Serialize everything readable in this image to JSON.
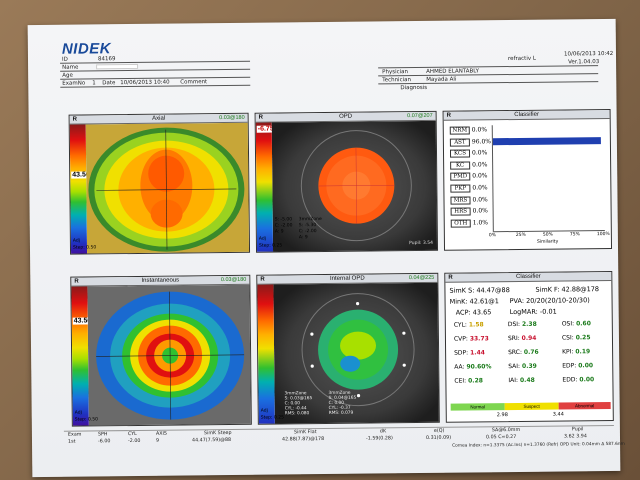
{
  "header": {
    "logo": "NIDEK",
    "id_label": "ID",
    "id_value": "84169",
    "name_label": "Name",
    "age_label": "Age",
    "exam_label": "ExamNo",
    "exam_value": "1",
    "date_label": "Date",
    "date_value": "10/06/2013 10:40",
    "comment_label": "Comment",
    "physician_label": "Physician",
    "physician_value": "AHMED ELANTABLY",
    "technician_label": "Technician",
    "technician_value": "Mayada Ali",
    "diagnosis_label": "Diagnosis",
    "device": "refractiv L",
    "print_date": "10/06/2013 10:42",
    "version": "Ver.1.04.03"
  },
  "panels": {
    "axial": {
      "eye": "R",
      "title": "Axial",
      "angle": "0.03@180",
      "big": "43.50",
      "mode": "Adj",
      "step": "Step: 0.50"
    },
    "opd": {
      "eye": "R",
      "title": "OPD",
      "angle": "0.07@207",
      "big": "-6.75",
      "s": "S: -5.00",
      "c": "C: -2.00",
      "a": "A: 9",
      "zone": "3mmZone",
      "s2": "S: -5.30",
      "c2": "C: -2.00",
      "a2": "A: 9",
      "mode": "Adj",
      "step": "Step: 0.25",
      "pupil": "Pupil: 3.54"
    },
    "classifier1": {
      "eye": "R",
      "title": "Classifier",
      "axis_label": "Similarity",
      "rows": [
        {
          "code": "NRM",
          "pct": "0.0%"
        },
        {
          "code": "AST",
          "pct": "96.0%"
        },
        {
          "code": "KCS",
          "pct": "0.0%"
        },
        {
          "code": "KC",
          "pct": "0.0%"
        },
        {
          "code": "PMD",
          "pct": "0.0%"
        },
        {
          "code": "PKP",
          "pct": "0.0%"
        },
        {
          "code": "MRS",
          "pct": "0.0%"
        },
        {
          "code": "HRS",
          "pct": "0.0%"
        },
        {
          "code": "OTH",
          "pct": "1.0%"
        }
      ],
      "ticks": [
        "0%",
        "25%",
        "50%",
        "75%",
        "100%"
      ]
    },
    "instant": {
      "eye": "R",
      "title": "Instantaneous",
      "angle": "0.03@180",
      "big": "43.50",
      "mode": "Adj",
      "step": "Step: 0.50"
    },
    "iopd": {
      "eye": "R",
      "title": "Internal OPD",
      "angle": "0.04@225",
      "zone": "3mmZone",
      "s": "S: 0.03@165",
      "c": "C: 0.00",
      "cyl": "CYL: -0.44",
      "rms": "RMS: 0.080",
      "zone2": "3mmZone",
      "s2": "S: 0.04@165",
      "c2": "C: 0.00",
      "cyl2": "CYL: -0.37",
      "rms2": "RMS: 0.079",
      "mode": "Adj",
      "step": "Step: 0.25"
    },
    "classifier2": {
      "eye": "R",
      "title": "Classifier",
      "simk_s": "SimK S: 44.47@88",
      "simk_f": "SimK F: 42.88@178",
      "mink": "MinK: 42.61@1",
      "pva": "PVA: 20/20(20/10-20/30)",
      "acp": "ACP: 43.65",
      "logmar": "LogMAR: -0.01",
      "indices": [
        {
          "k": "CYL:",
          "v": "1.58",
          "c": "#c8a000"
        },
        {
          "k": "DSI:",
          "v": "2.38",
          "c": "#1a7a1a"
        },
        {
          "k": "OSI:",
          "v": "0.60",
          "c": "#1a7a1a"
        },
        {
          "k": "CVP:",
          "v": "33.73",
          "c": "#c8102e"
        },
        {
          "k": "SRI:",
          "v": "0.94",
          "c": "#c8102e"
        },
        {
          "k": "CSI:",
          "v": "0.25",
          "c": "#1a7a1a"
        },
        {
          "k": "SDP:",
          "v": "1.44",
          "c": "#c8102e"
        },
        {
          "k": "SRC:",
          "v": "0.76",
          "c": "#1a7a1a"
        },
        {
          "k": "KPI:",
          "v": "0.19",
          "c": "#1a7a1a"
        },
        {
          "k": "AA:",
          "v": "90.60%",
          "c": "#1a7a1a"
        },
        {
          "k": "SAI:",
          "v": "0.39",
          "c": "#1a7a1a"
        },
        {
          "k": "EDP:",
          "v": "0.00",
          "c": "#1a7a1a"
        },
        {
          "k": "CEI:",
          "v": "0.28",
          "c": "#1a7a1a"
        },
        {
          "k": "IAI:",
          "v": "0.48",
          "c": "#1a7a1a"
        },
        {
          "k": "EDD:",
          "v": "0.00",
          "c": "#1a7a1a"
        }
      ],
      "bar_normal": "Normal",
      "bar_suspect": "Suspect",
      "bar_abnormal": "Abnormal",
      "bar_v1": "2.98",
      "bar_v2": "3.44"
    }
  },
  "footer": {
    "exam_label": "Exam",
    "exam_val": "1st",
    "sph_label": "SPH",
    "sph_val": "-6.00",
    "cyl_label": "CYL",
    "cyl_val": "-2.00",
    "axis_label": "AXIS",
    "axis_val": "9",
    "simk_steep_label": "SimK Steep",
    "simk_steep_val": "44.47(7.59)@88",
    "simk_flat_label": "SimK Flat",
    "simk_flat_val": "42.88(7.87)@178",
    "dk_label": "dK",
    "dk_val": "-1.59(0.28)",
    "ecc_label": "e(Q)",
    "ecc_val": "0.31(0.09)",
    "sa_label": "SA@6.0mm",
    "sa_val": "0.05 C=0.27",
    "pupil_label": "Pupil",
    "pupil_val": "3.62  3.94",
    "index_line": "Cornea Index: n=1.3375 (Ac.Ins) n=1.3760 (Refr) OPD Unit: 0.04mm  ∆ 587.6nm"
  }
}
